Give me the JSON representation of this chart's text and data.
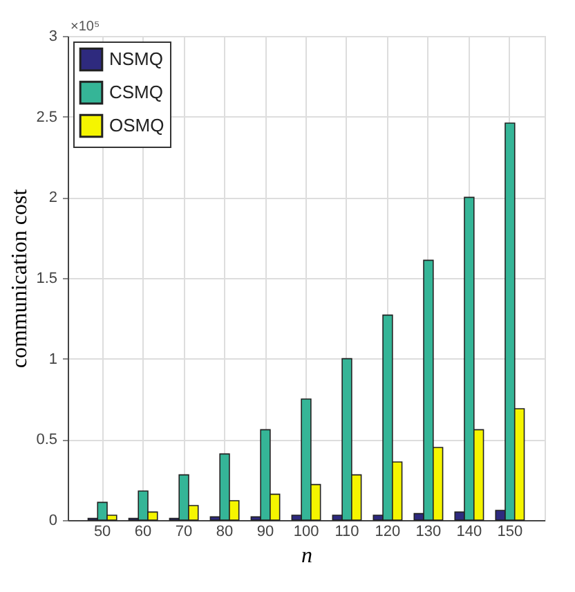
{
  "chart_data": {
    "type": "bar",
    "xlabel": "n",
    "ylabel": "communication cost",
    "categories": [
      "50",
      "60",
      "70",
      "80",
      "90",
      "100",
      "110",
      "120",
      "130",
      "140",
      "150"
    ],
    "series": [
      {
        "name": "NSMQ",
        "color": "#2e2a7e",
        "values": [
          0.01,
          0.01,
          0.01,
          0.02,
          0.02,
          0.03,
          0.03,
          0.03,
          0.04,
          0.05,
          0.06
        ]
      },
      {
        "name": "CSMQ",
        "color": "#35b597",
        "values": [
          0.11,
          0.18,
          0.28,
          0.41,
          0.56,
          0.75,
          1.0,
          1.27,
          1.61,
          2.0,
          2.46
        ]
      },
      {
        "name": "OSMQ",
        "color": "#f5f500",
        "values": [
          0.03,
          0.05,
          0.09,
          0.12,
          0.16,
          0.22,
          0.28,
          0.36,
          0.45,
          0.56,
          0.69
        ]
      }
    ],
    "ylim": [
      0,
      3
    ],
    "yticks": [
      0,
      0.5,
      1,
      1.5,
      2,
      2.5,
      3
    ],
    "annotations": [
      "×10⁵"
    ],
    "grid": true,
    "legend": "top left"
  }
}
